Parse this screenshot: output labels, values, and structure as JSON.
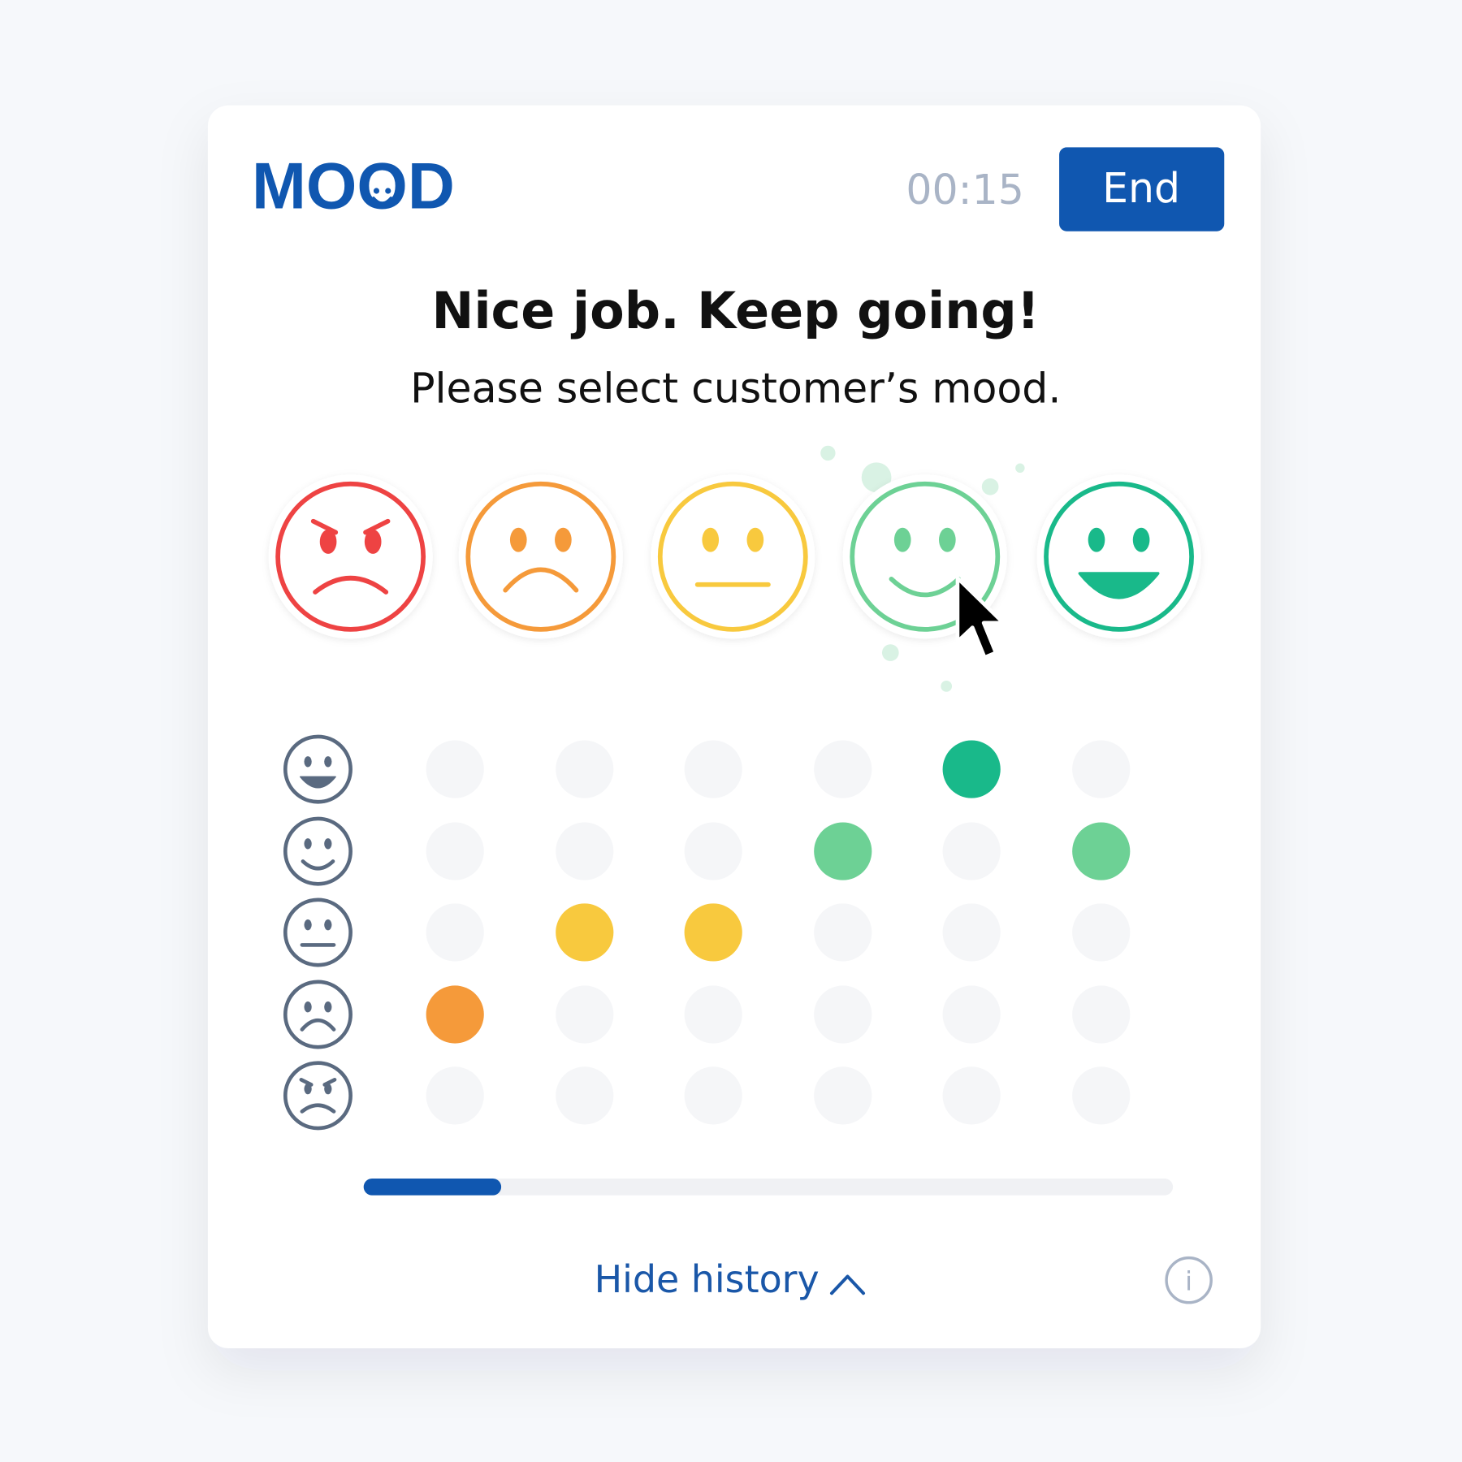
{
  "header": {
    "logo": "MOOD",
    "timer": "00:15",
    "button": "End"
  },
  "prompt": {
    "title": "Nice job. Keep going!",
    "subtitle": "Please select customer’s mood."
  },
  "mood_colors": [
    "#ee4343",
    "#f59a3a",
    "#f8c93e",
    "#6dd195",
    "#19b98a"
  ],
  "history": [
    2,
    3,
    3,
    4,
    5,
    4
  ],
  "progress": 0.17,
  "footer": {
    "toggle": "Hide history",
    "info": "i"
  }
}
